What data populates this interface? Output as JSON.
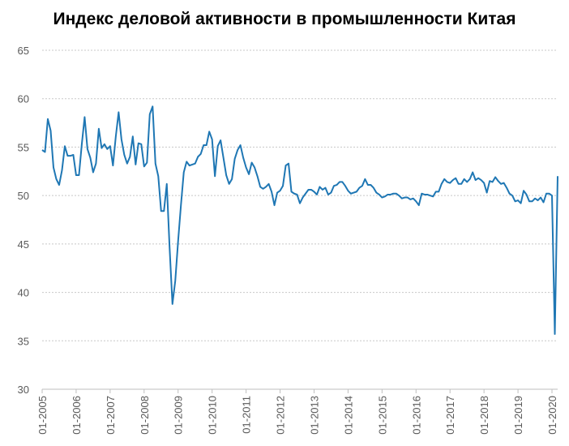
{
  "chart_data": {
    "type": "line",
    "title": "Индекс деловой активности в промышленности Китая",
    "xlabel": "",
    "ylabel": "",
    "ylim": [
      30,
      65
    ],
    "yticks": [
      30,
      35,
      40,
      45,
      50,
      55,
      60,
      65
    ],
    "grid": true,
    "legend": "none",
    "line_color": "#1f77b4",
    "x_tick_labels": [
      "01-2005",
      "01-2006",
      "01-2007",
      "01-2008",
      "01-2009",
      "01-2010",
      "01-2011",
      "01-2012",
      "01-2013",
      "01-2014",
      "01-2015",
      "01-2016",
      "01-2017",
      "01-2018",
      "01-2019",
      "01-2020"
    ],
    "x_start": "01-2005",
    "x_end": "02-2020",
    "series": [
      {
        "values": [
          54.7,
          54.5,
          57.9,
          56.7,
          52.9,
          51.7,
          51.1,
          52.6,
          55.1,
          54.1,
          54.1,
          54.2,
          52.1,
          52.1,
          55.3,
          58.1,
          54.8,
          53.9,
          52.4,
          53.3,
          56.9,
          54.9,
          55.3,
          54.8,
          55.1,
          53.1,
          56.1,
          58.6,
          55.8,
          54.2,
          53.3,
          54.0,
          56.1,
          53.2,
          55.4,
          55.3,
          53.0,
          53.4,
          58.4,
          59.2,
          53.3,
          52.0,
          48.4,
          48.4,
          51.2,
          44.6,
          38.8,
          41.2,
          45.3,
          49.0,
          52.4,
          53.5,
          53.1,
          53.2,
          53.3,
          54.0,
          54.3,
          55.2,
          55.2,
          56.6,
          55.8,
          52.0,
          55.1,
          55.7,
          53.9,
          52.1,
          51.2,
          51.7,
          53.8,
          54.7,
          55.2,
          53.9,
          52.9,
          52.2,
          53.4,
          52.9,
          52.0,
          50.9,
          50.7,
          50.9,
          51.2,
          50.4,
          49.0,
          50.3,
          50.5,
          51.0,
          53.1,
          53.3,
          50.4,
          50.2,
          50.1,
          49.2,
          49.8,
          50.2,
          50.6,
          50.6,
          50.4,
          50.1,
          50.9,
          50.6,
          50.8,
          50.1,
          50.3,
          51.0,
          51.1,
          51.4,
          51.4,
          51.0,
          50.5,
          50.2,
          50.3,
          50.4,
          50.8,
          51.0,
          51.7,
          51.1,
          51.1,
          50.8,
          50.3,
          50.1,
          49.8,
          49.9,
          50.1,
          50.1,
          50.2,
          50.2,
          50.0,
          49.7,
          49.8,
          49.8,
          49.6,
          49.7,
          49.4,
          49.0,
          50.2,
          50.1,
          50.1,
          50.0,
          49.9,
          50.4,
          50.4,
          51.2,
          51.7,
          51.4,
          51.3,
          51.6,
          51.8,
          51.2,
          51.2,
          51.7,
          51.4,
          51.7,
          52.4,
          51.6,
          51.8,
          51.6,
          51.3,
          50.3,
          51.5,
          51.4,
          51.9,
          51.5,
          51.2,
          51.3,
          50.8,
          50.2,
          50.0,
          49.4,
          49.5,
          49.2,
          50.5,
          50.1,
          49.4,
          49.4,
          49.7,
          49.5,
          49.8,
          49.3,
          50.2,
          50.2,
          50.0,
          35.7,
          52.0
        ]
      }
    ]
  }
}
